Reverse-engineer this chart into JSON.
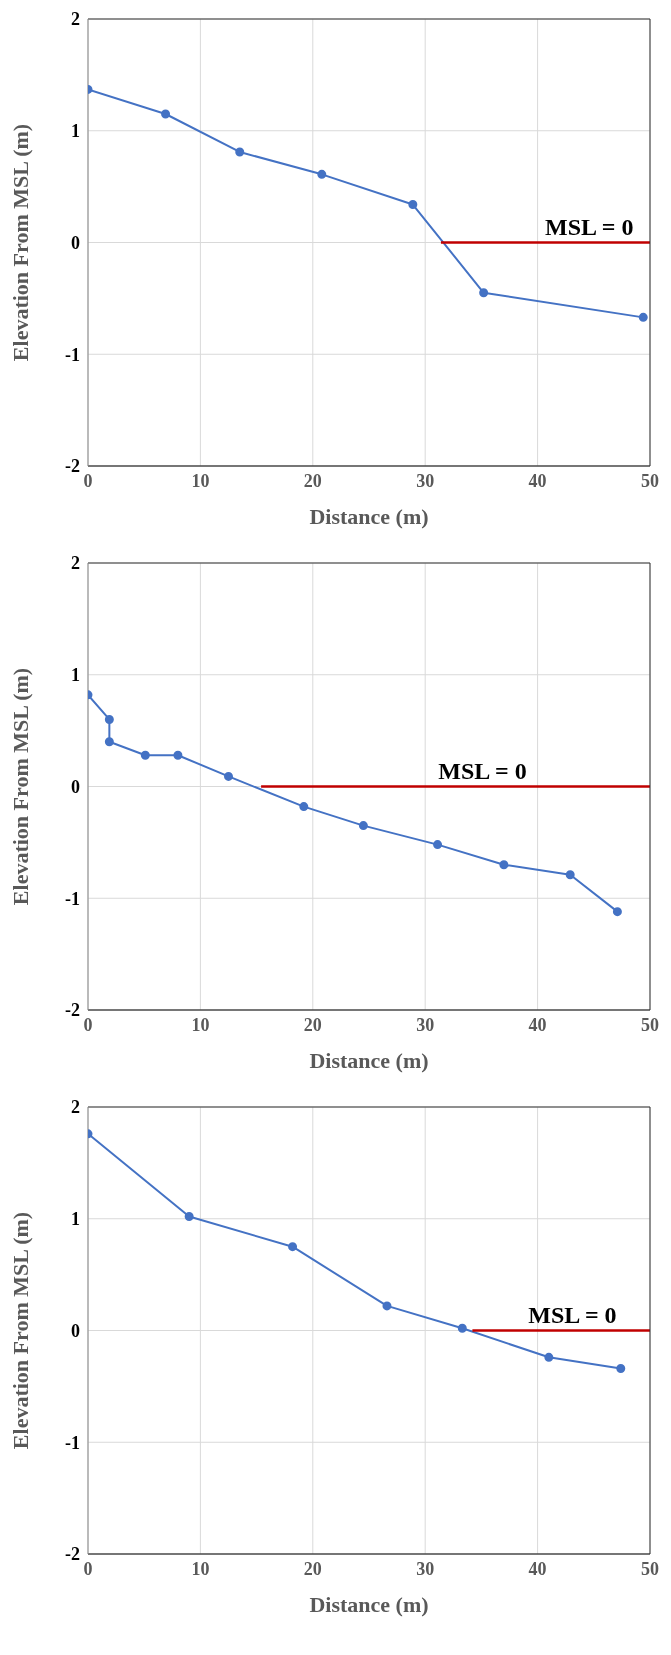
{
  "chart_data": [
    {
      "type": "line",
      "xlabel": "Distance (m)",
      "ylabel": "Elevation From MSL (m)",
      "xlim": [
        0,
        50
      ],
      "xticks": [
        0,
        10,
        20,
        30,
        40,
        50
      ],
      "ylim": [
        -2,
        2
      ],
      "yticks": [
        -2,
        -1,
        0,
        1,
        2
      ],
      "grid": true,
      "marker": "circle",
      "series": [
        {
          "color": "#4472c4",
          "x": [
            0,
            6.9,
            13.5,
            20.8,
            28.9,
            35.2,
            49.4
          ],
          "values": [
            1.37,
            1.15,
            0.81,
            0.61,
            0.34,
            -0.45,
            -0.67
          ]
        },
        {
          "type": "line",
          "color": "#c00000",
          "marker": "none",
          "x": [
            31.4,
            50
          ],
          "values": [
            0,
            0
          ]
        }
      ],
      "annotations": [
        {
          "text": "MSL = 0",
          "x": 44.6,
          "y": 0
        }
      ]
    },
    {
      "type": "line",
      "xlabel": "Distance (m)",
      "ylabel": "Elevation From MSL (m)",
      "xlim": [
        0,
        50
      ],
      "xticks": [
        0,
        10,
        20,
        30,
        40,
        50
      ],
      "ylim": [
        -2,
        2
      ],
      "yticks": [
        -2,
        -1,
        0,
        1,
        2
      ],
      "grid": true,
      "marker": "circle",
      "series": [
        {
          "color": "#4472c4",
          "x": [
            0,
            1.9,
            1.9,
            5.1,
            8,
            12.5,
            19.2,
            24.5,
            31.1,
            37,
            42.9,
            47.1
          ],
          "values": [
            0.82,
            0.6,
            0.4,
            0.28,
            0.28,
            0.09,
            -0.18,
            -0.35,
            -0.52,
            -0.7,
            -0.79,
            -1.12
          ]
        },
        {
          "type": "line",
          "color": "#c00000",
          "marker": "none",
          "x": [
            15.4,
            50
          ],
          "values": [
            0,
            0
          ]
        }
      ],
      "annotations": [
        {
          "text": "MSL = 0",
          "x": 35.1,
          "y": 0
        }
      ]
    },
    {
      "type": "line",
      "xlabel": "Distance (m)",
      "ylabel": "Elevation From MSL (m)",
      "xlim": [
        0,
        50
      ],
      "xticks": [
        0,
        10,
        20,
        30,
        40,
        50
      ],
      "ylim": [
        -2,
        2
      ],
      "yticks": [
        -2,
        -1,
        0,
        1,
        2
      ],
      "grid": true,
      "marker": "circle",
      "series": [
        {
          "color": "#4472c4",
          "x": [
            0,
            9,
            18.2,
            26.6,
            33.3,
            41,
            47.4
          ],
          "values": [
            1.76,
            1.02,
            0.75,
            0.22,
            0.02,
            -0.24,
            -0.34
          ]
        },
        {
          "type": "line",
          "color": "#c00000",
          "marker": "none",
          "x": [
            34.2,
            50
          ],
          "values": [
            0,
            0
          ]
        }
      ],
      "annotations": [
        {
          "text": "MSL = 0",
          "x": 43.1,
          "y": 0
        }
      ]
    }
  ]
}
